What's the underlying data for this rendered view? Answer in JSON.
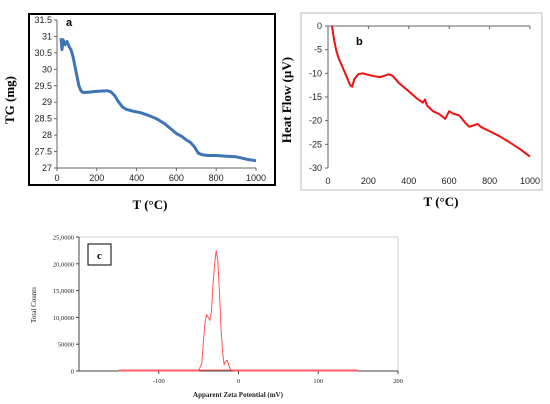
{
  "chart_data": [
    {
      "type": "line",
      "panel_label": "a",
      "xlabel": "T (°C)",
      "ylabel": "TG (mg)",
      "xlim": [
        0,
        1000
      ],
      "ylim": [
        27,
        31.5
      ],
      "xticks": [
        0,
        200,
        400,
        600,
        800,
        1000
      ],
      "yticks": [
        27,
        27.5,
        28,
        28.5,
        29,
        29.5,
        30,
        30.5,
        31,
        31.5
      ],
      "color": "#3f74b5",
      "x": [
        20,
        25,
        30,
        40,
        50,
        60,
        70,
        80,
        90,
        100,
        110,
        120,
        130,
        150,
        200,
        250,
        270,
        290,
        310,
        330,
        350,
        380,
        420,
        460,
        500,
        540,
        570,
        600,
        630,
        650,
        670,
        690,
        710,
        730,
        760,
        800,
        850,
        900,
        950,
        1000
      ],
      "y": [
        30.95,
        30.6,
        30.9,
        30.75,
        30.85,
        30.7,
        30.6,
        30.4,
        30.1,
        29.8,
        29.5,
        29.35,
        29.3,
        29.3,
        29.33,
        29.35,
        29.32,
        29.2,
        29.0,
        28.85,
        28.78,
        28.73,
        28.68,
        28.6,
        28.5,
        28.35,
        28.2,
        28.05,
        27.95,
        27.85,
        27.78,
        27.65,
        27.45,
        27.4,
        27.38,
        27.38,
        27.36,
        27.34,
        27.27,
        27.22
      ]
    },
    {
      "type": "line",
      "panel_label": "b",
      "xlabel": "T (°C)",
      "ylabel": "Heat Flow (µV)",
      "xlim": [
        0,
        1000
      ],
      "ylim": [
        -30,
        0
      ],
      "xticks": [
        0,
        200,
        400,
        600,
        800,
        1000
      ],
      "yticks": [
        0,
        -5,
        -10,
        -15,
        -20,
        -25,
        -30
      ],
      "color": "#ee1111",
      "x": [
        20,
        25,
        30,
        40,
        50,
        60,
        80,
        100,
        110,
        120,
        130,
        150,
        170,
        200,
        230,
        260,
        300,
        320,
        350,
        400,
        440,
        470,
        480,
        490,
        500,
        520,
        550,
        580,
        600,
        620,
        650,
        680,
        700,
        720,
        740,
        760,
        800,
        850,
        900,
        950,
        1000
      ],
      "y": [
        0,
        -1.5,
        -3,
        -5,
        -6.5,
        -7.5,
        -9.5,
        -11.5,
        -12.5,
        -12.8,
        -11.2,
        -10.2,
        -10,
        -10.3,
        -10.6,
        -10.8,
        -10.2,
        -10.5,
        -12,
        -13.8,
        -15.3,
        -16.2,
        -15.5,
        -16.8,
        -17.2,
        -18,
        -18.6,
        -19.6,
        -18,
        -18.5,
        -18.9,
        -20.5,
        -21.3,
        -21,
        -20.7,
        -21.4,
        -22.2,
        -23.3,
        -24.6,
        -26.0,
        -27.6
      ]
    },
    {
      "type": "line",
      "panel_label": "c",
      "xlabel": "Apparent Zeta Potential (mV)",
      "ylabel": "Total Counts",
      "xlim": [
        -200,
        200
      ],
      "ylim": [
        0,
        250000
      ],
      "xticks": [
        -100,
        0,
        100,
        200
      ],
      "ytick_values": [
        0,
        50000,
        100000,
        150000,
        200000,
        250000
      ],
      "ytick_labels": [
        "0",
        "50000",
        "10,0000",
        "15,0000",
        "20,0000",
        "25,0000"
      ],
      "color": "#ff5555",
      "x": [
        -150,
        -50,
        -46,
        -44,
        -42,
        -40,
        -38,
        -36,
        -34,
        -32,
        -30,
        -28,
        -26,
        -24,
        -22,
        -20,
        -18,
        -16,
        -14,
        -12,
        -10,
        -8,
        -5,
        0,
        150
      ],
      "y": [
        0,
        0,
        15000,
        55000,
        90000,
        105000,
        100000,
        95000,
        110000,
        160000,
        200000,
        225000,
        205000,
        150000,
        80000,
        35000,
        12000,
        18000,
        20000,
        10000,
        3000,
        1000,
        0,
        0,
        0
      ]
    }
  ]
}
